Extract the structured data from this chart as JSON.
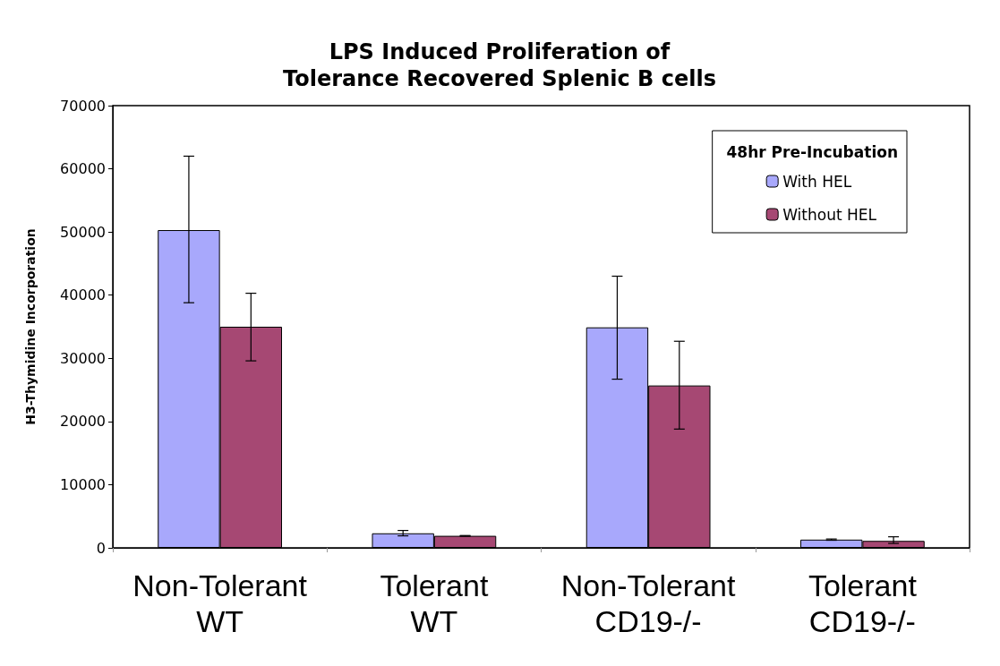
{
  "chart_data": {
    "type": "bar",
    "title": "LPS Induced Proliferation of\nTolerance Recovered Splenic B cells",
    "ylabel": "H3-Thymidine Incorporation",
    "legend_title": "48hr Pre-Incubation",
    "categories": [
      "Non-Tolerant\nWT",
      "Tolerant\nWT",
      "Non-Tolerant\nCD19-/-",
      "Tolerant\nCD19-/-"
    ],
    "series": [
      {
        "name": "With HEL",
        "color": "#a8a8fc",
        "values": [
          50300,
          2300,
          34900,
          1300
        ],
        "errors": [
          [
            38800,
            62000
          ],
          [
            1900,
            2750
          ],
          [
            26700,
            43000
          ],
          [
            1200,
            1400
          ]
        ]
      },
      {
        "name": "Without HEL",
        "color": "#a64873",
        "values": [
          35000,
          1900,
          25700,
          1100
        ],
        "errors": [
          [
            29600,
            40300
          ],
          [
            1850,
            1950
          ],
          [
            18800,
            32700
          ],
          [
            700,
            1750
          ]
        ]
      }
    ],
    "ylim": [
      0,
      70000
    ],
    "yticks": [
      0,
      10000,
      20000,
      30000,
      40000,
      50000,
      60000,
      70000
    ],
    "grid": false,
    "legend": "top right"
  }
}
